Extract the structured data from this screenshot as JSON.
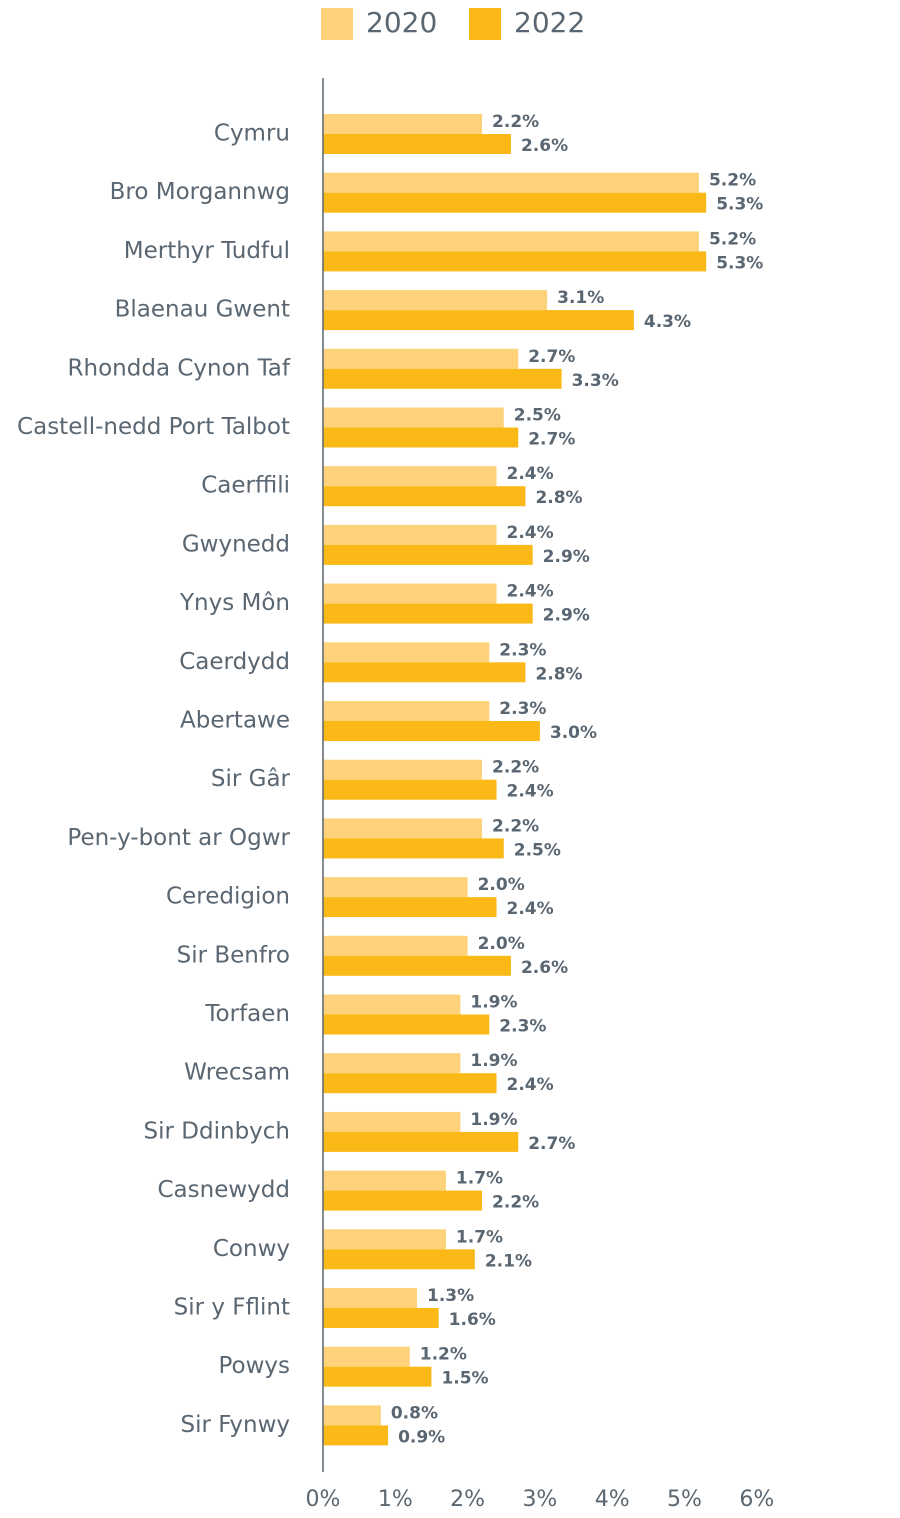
{
  "chart_data": {
    "type": "bar",
    "orientation": "horizontal",
    "categories": [
      "Cymru",
      "Bro Morgannwg",
      "Merthyr Tudful",
      "Blaenau Gwent",
      "Rhondda Cynon Taf",
      "Castell-nedd Port Talbot",
      "Caerffili",
      "Gwynedd",
      "Ynys Môn",
      "Caerdydd",
      "Abertawe",
      "Sir Gâr",
      "Pen-y-bont ar Ogwr",
      "Ceredigion",
      "Sir Benfro",
      "Torfaen",
      "Wrecsam",
      "Sir Ddinbych",
      "Casnewydd",
      "Conwy",
      "Sir y Fflint",
      "Powys",
      "Sir Fynwy"
    ],
    "series": [
      {
        "name": "2020",
        "color": "#fdd27b",
        "values": [
          2.2,
          5.2,
          5.2,
          3.1,
          2.7,
          2.5,
          2.4,
          2.4,
          2.4,
          2.3,
          2.3,
          2.2,
          2.2,
          2.0,
          2.0,
          1.9,
          1.9,
          1.9,
          1.7,
          1.7,
          1.3,
          1.2,
          0.8
        ],
        "value_labels": [
          "2.2%",
          "5.2%",
          "5.2%",
          "3.1%",
          "2.7%",
          "2.5%",
          "2.4%",
          "2.4%",
          "2.4%",
          "2.3%",
          "2.3%",
          "2.2%",
          "2.2%",
          "2.0%",
          "2.0%",
          "1.9%",
          "1.9%",
          "1.9%",
          "1.7%",
          "1.7%",
          "1.3%",
          "1.2%",
          "0.8%"
        ]
      },
      {
        "name": "2022",
        "color": "#fbb917",
        "values": [
          2.6,
          5.3,
          5.3,
          4.3,
          3.3,
          2.7,
          2.8,
          2.9,
          2.9,
          2.8,
          3.0,
          2.4,
          2.5,
          2.4,
          2.6,
          2.3,
          2.4,
          2.7,
          2.2,
          2.1,
          1.6,
          1.5,
          0.9
        ],
        "value_labels": [
          "2.6%",
          "5.3%",
          "5.3%",
          "4.3%",
          "3.3%",
          "2.7%",
          "2.8%",
          "2.9%",
          "2.9%",
          "2.8%",
          "3.0%",
          "2.4%",
          "2.5%",
          "2.4%",
          "2.6%",
          "2.3%",
          "2.4%",
          "2.7%",
          "2.2%",
          "2.1%",
          "1.6%",
          "1.5%",
          "0.9%"
        ]
      }
    ],
    "xlim": [
      0,
      7.5
    ],
    "xticks": [
      {
        "value": 0,
        "label": "0%"
      },
      {
        "value": 1,
        "label": "1%"
      },
      {
        "value": 2,
        "label": "2%"
      },
      {
        "value": 3,
        "label": "3%"
      },
      {
        "value": 4,
        "label": "4%"
      },
      {
        "value": 5,
        "label": "5%"
      },
      {
        "value": 6,
        "label": "6%"
      }
    ],
    "legend": "top"
  }
}
